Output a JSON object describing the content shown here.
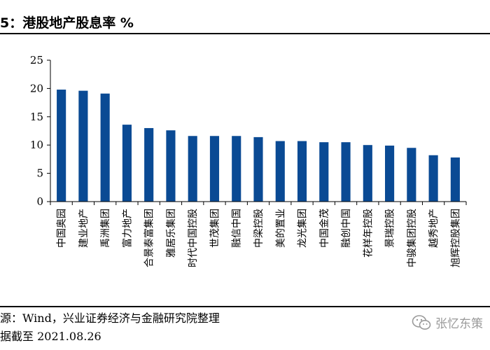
{
  "header": {
    "title": "5：港股地产股息率 %"
  },
  "footer": {
    "source": "源：Wind，兴业证券经济与金融研究院整理",
    "date": "据截至 2021.08.26"
  },
  "watermark": {
    "text": "张忆东策",
    "icon": "wechat-icon"
  },
  "colors": {
    "bar": "#0a4a94",
    "axis": "#000000"
  },
  "chart_data": {
    "type": "bar",
    "categories": [
      "中国奥园",
      "建业地产",
      "禹洲集团",
      "富力地产",
      "合景泰富集团",
      "雅居乐集团",
      "时代中国控股",
      "世茂集团",
      "融信中国",
      "中梁控股",
      "美的置业",
      "龙光集团",
      "中国金茂",
      "融创中国",
      "花样年控股",
      "景瑞控股",
      "中骏集团控股",
      "越秀地产",
      "旭辉控股集团"
    ],
    "values": [
      19.8,
      19.6,
      19.1,
      13.6,
      13.0,
      12.6,
      11.6,
      11.6,
      11.6,
      11.4,
      10.7,
      10.7,
      10.5,
      10.5,
      10.0,
      9.9,
      9.5,
      8.2,
      7.8
    ],
    "ylim": [
      0,
      25
    ],
    "yticks": [
      0,
      5,
      10,
      15,
      20,
      25
    ],
    "grid": false,
    "legend": "none",
    "title": "港股地产股息率 %",
    "xlabel": "",
    "ylabel": ""
  }
}
